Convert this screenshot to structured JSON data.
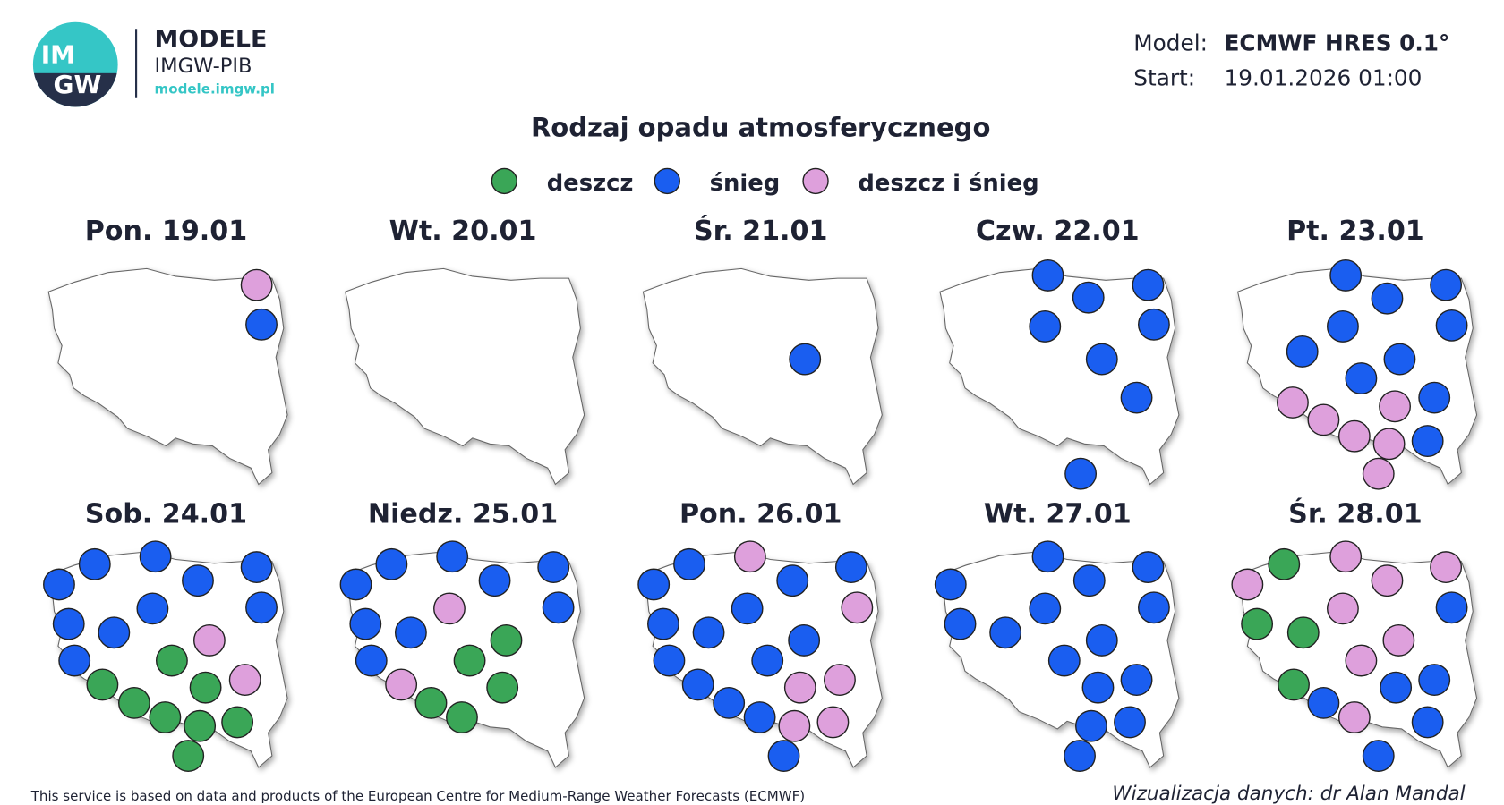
{
  "header": {
    "logo": {
      "top": "IM",
      "bottom": "GW"
    },
    "brand": "MODELE",
    "institute": "IMGW-PIB",
    "url": "modele.imgw.pl",
    "model_label": "Model:",
    "model": "ECMWF HRES 0.1°",
    "start_label": "Start:",
    "start": "19.01.2026 01:00"
  },
  "title": "Rodzaj opadu atmosferycznego",
  "legend": [
    {
      "label": "deszcz",
      "color": "#3aa657"
    },
    {
      "label": "śnieg",
      "color": "#1a5ef0"
    },
    {
      "label": "deszcz i śnieg",
      "color": "#dea0dc"
    }
  ],
  "panels": [
    {
      "label": "Pon. 19.01",
      "dots": [
        2,
        1
      ]
    },
    {
      "label": "Wt. 20.01",
      "dots": []
    },
    {
      "label": "Śr. 21.01",
      "dots": [
        1
      ]
    },
    {
      "label": "Czw. 22.01",
      "dots": [
        1,
        1,
        1,
        1,
        1,
        1,
        1,
        1
      ]
    },
    {
      "label": "Pt. 23.01",
      "dots": [
        1,
        1,
        1,
        1,
        1,
        1,
        1,
        1,
        1,
        1,
        2,
        2,
        2,
        2,
        2,
        2
      ]
    },
    {
      "label": "Sob. 24.01",
      "dots": [
        1,
        1,
        1,
        1,
        1,
        1,
        1,
        1,
        1,
        1,
        2,
        2,
        0,
        0,
        0,
        0,
        0,
        0,
        0,
        0
      ]
    },
    {
      "label": "Niedz. 25.01",
      "dots": [
        1,
        1,
        1,
        1,
        1,
        1,
        1,
        1,
        1,
        2,
        2,
        0,
        0,
        0,
        0,
        0
      ]
    },
    {
      "label": "Pon. 26.01",
      "dots": [
        1,
        1,
        1,
        1,
        1,
        1,
        1,
        1,
        1,
        1,
        1,
        1,
        1,
        1,
        2,
        2,
        2,
        2,
        2,
        2
      ]
    },
    {
      "label": "Wt. 27.01",
      "dots": [
        1,
        1,
        1,
        1,
        1,
        1,
        1,
        1,
        1,
        1,
        1,
        1,
        1,
        1,
        1
      ]
    },
    {
      "label": "Śr. 28.01",
      "dots": [
        2,
        2,
        2,
        2,
        2,
        2,
        2,
        2,
        0,
        0,
        0,
        0,
        1,
        1,
        1,
        1,
        1,
        1
      ]
    }
  ],
  "footer": {
    "source": "This service is based on data and products of the European Centre for Medium-Range Weather Forecasts (ECMWF)",
    "credit": "Wizualizacja danych: dr Alan Mandal"
  }
}
